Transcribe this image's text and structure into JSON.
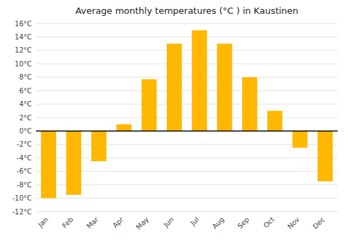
{
  "chart_data": {
    "type": "bar",
    "title": "Average monthly temperatures (°C ) in Kaustinen",
    "categories": [
      "Jan",
      "Feb",
      "Mar",
      "Apr",
      "May",
      "Jun",
      "Jul",
      "Aug",
      "Sep",
      "Oct",
      "Nov",
      "Dec"
    ],
    "values": [
      -10,
      -9.5,
      -4.5,
      1,
      7.7,
      13,
      15,
      13,
      8,
      3,
      -2.5,
      -7.5
    ],
    "color": "#FFB700",
    "ylim": [
      -12,
      16
    ],
    "yticks": [
      {
        "value": -12,
        "label": "-12°C"
      },
      {
        "value": -10,
        "label": "-10°C"
      },
      {
        "value": -8,
        "label": "-8°C"
      },
      {
        "value": -6,
        "label": "-6°C"
      },
      {
        "value": -4,
        "label": "-4°C"
      },
      {
        "value": -2,
        "label": "-2°C"
      },
      {
        "value": 0,
        "label": "0°C"
      },
      {
        "value": 2,
        "label": "2°C"
      },
      {
        "value": 4,
        "label": "4°C"
      },
      {
        "value": 6,
        "label": "6°C"
      },
      {
        "value": 8,
        "label": "8°C"
      },
      {
        "value": 10,
        "label": "10°C"
      },
      {
        "value": 12,
        "label": "12°C"
      },
      {
        "value": 14,
        "label": "14°C"
      },
      {
        "value": 16,
        "label": "16°C"
      }
    ],
    "grid": true
  }
}
